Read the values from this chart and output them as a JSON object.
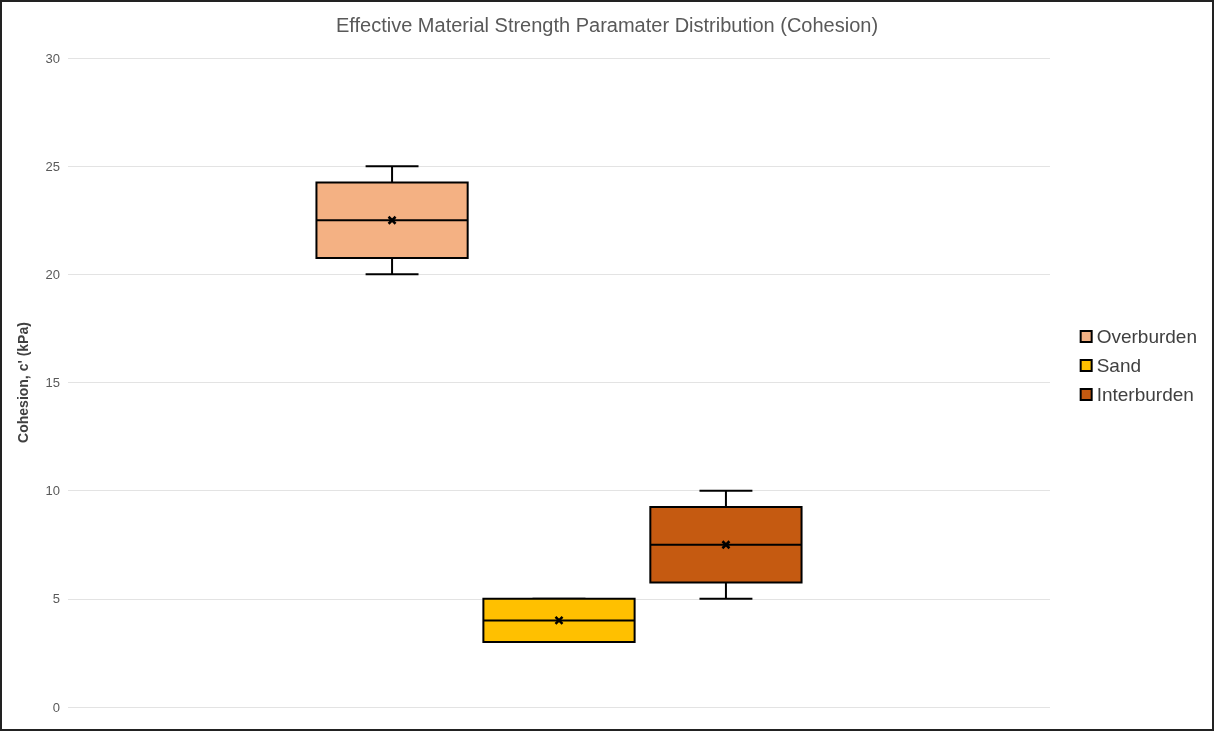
{
  "chart_data": {
    "type": "box",
    "title": "Effective Material Strength Paramater Distribution (Cohesion)",
    "ylabel": "Cohesion, c' (kPa)",
    "categories": [
      null
    ],
    "series": [
      {
        "name": "Overburden",
        "color": "#f4b183",
        "boxes": [
          {
            "low": 20,
            "q1": 20.75,
            "median": 22.5,
            "q3": 24.25,
            "high": 25,
            "mean": 22.5
          }
        ]
      },
      {
        "name": "Sand",
        "color": "#ffc000",
        "boxes": [
          {
            "low": 3,
            "q1": 3,
            "median": 4,
            "q3": 5,
            "high": 5,
            "mean": 4
          }
        ]
      },
      {
        "name": "Interburden",
        "color": "#c55a11",
        "boxes": [
          {
            "low": 5,
            "q1": 5.75,
            "median": 7.5,
            "q3": 9.25,
            "high": 10,
            "mean": 7.5
          }
        ]
      }
    ],
    "ylim": [
      0,
      30
    ],
    "yticks": [
      0,
      5,
      10,
      15,
      20,
      25,
      30
    ],
    "grid": "y",
    "legend": "right"
  }
}
